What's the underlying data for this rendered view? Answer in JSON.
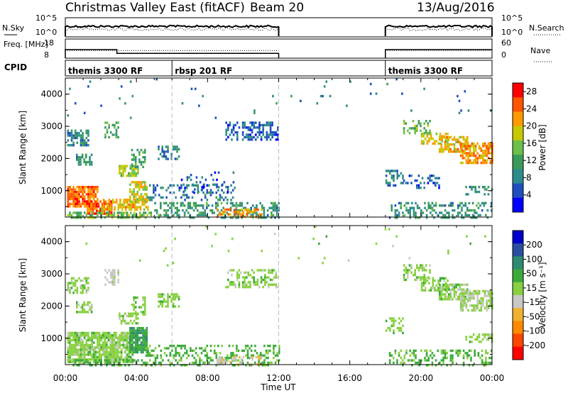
{
  "header": {
    "title": "Christmas Valley East (fitACF)",
    "beam": "Beam 20",
    "date": "13/Aug/2016"
  },
  "colors": {
    "power": [
      "#0000ff",
      "#1f4fbf",
      "#2e8b8b",
      "#3a9a5a",
      "#6ac04a",
      "#c8c800",
      "#ff9900",
      "#ff5500",
      "#ff0000"
    ],
    "velocity": [
      "#0000cc",
      "#2a4fa0",
      "#2e8b6f",
      "#3aaa3a",
      "#88d040",
      "#c8c8c4",
      "#f0b030",
      "#ff8800",
      "#ff4400",
      "#ff0000"
    ]
  },
  "chart_data": [
    {
      "type": "line",
      "panel": "nsky_nsearch",
      "left_label": "N.Sky",
      "right_label": "N.Search",
      "left_ticks": [
        "10^5",
        "10^0"
      ],
      "right_ticks": [
        "10^5",
        "10^0"
      ],
      "series": [
        {
          "name": "N.Sky",
          "segments": [
            [
              0.0,
              12.0
            ],
            [
              18.0,
              24.0
            ]
          ],
          "level": 0.45
        },
        {
          "name": "N.Search",
          "segments": [
            [
              0.0,
              12.0
            ],
            [
              18.0,
              24.0
            ]
          ],
          "level": 0.6
        }
      ]
    },
    {
      "type": "line",
      "panel": "freq_nave",
      "left_label": "Freq. [MHz]",
      "right_label": "Nave",
      "left_ticks": [
        "18",
        "8"
      ],
      "right_ticks": [
        "60",
        "0"
      ],
      "series": [
        {
          "name": "Freq.",
          "x": [
            0.0,
            2.9,
            2.9,
            12.0
          ],
          "y": [
            12.5,
            12.5,
            10.5,
            10.5
          ]
        },
        {
          "name": "Nave",
          "segments": [
            [
              0.0,
              12.0
            ],
            [
              18.0,
              24.0
            ]
          ],
          "y": 24
        }
      ]
    },
    {
      "type": "table",
      "panel": "cpid",
      "label": "CPID",
      "entries": [
        {
          "start": 0.0,
          "text": "themis 3300 RF"
        },
        {
          "start": 6.0,
          "text": "rbsp 201 RF"
        },
        {
          "start": 18.0,
          "text": "themis 3300 RF"
        }
      ]
    },
    {
      "type": "heatmap",
      "panel": "power",
      "ylabel": "Slant Range [km]",
      "xlim": [
        0,
        24
      ],
      "ylim": [
        180,
        4500
      ],
      "yticks": [
        1000,
        2000,
        3000,
        4000
      ],
      "colorbar_label": "Power [dB]",
      "colorbar_ticks": [
        4,
        8,
        12,
        16,
        20,
        24,
        28
      ],
      "colorbar_range": [
        0,
        30
      ],
      "dashed_lines_ut": [
        6.0,
        12.0
      ],
      "regions": [
        {
          "t0": 0.1,
          "t1": 1.3,
          "r0": 2400,
          "r1": 2900,
          "v": 9,
          "density": 0.55
        },
        {
          "t0": 0.6,
          "t1": 1.5,
          "r0": 1850,
          "r1": 2150,
          "v": 10,
          "density": 0.5
        },
        {
          "t0": 2.2,
          "t1": 3.0,
          "r0": 2700,
          "r1": 3150,
          "v": 12,
          "density": 0.55
        },
        {
          "t0": 3.0,
          "t1": 4.1,
          "r0": 1500,
          "r1": 1800,
          "v": 16,
          "density": 0.65
        },
        {
          "t0": 3.7,
          "t1": 4.5,
          "r0": 1750,
          "r1": 2300,
          "v": 12,
          "density": 0.4
        },
        {
          "t0": 5.2,
          "t1": 6.4,
          "r0": 2000,
          "r1": 2400,
          "v": 8,
          "density": 0.45
        },
        {
          "t0": 0.1,
          "t1": 1.8,
          "r0": 550,
          "r1": 1150,
          "v": 24,
          "density": 0.85
        },
        {
          "t0": 1.2,
          "t1": 2.6,
          "r0": 300,
          "r1": 700,
          "v": 26,
          "density": 0.8
        },
        {
          "t0": 2.0,
          "t1": 4.6,
          "r0": 400,
          "r1": 750,
          "v": 20,
          "density": 0.7
        },
        {
          "t0": 3.6,
          "t1": 4.6,
          "r0": 700,
          "r1": 1300,
          "v": 18,
          "density": 0.7
        },
        {
          "t0": 0.1,
          "t1": 4.8,
          "r0": 180,
          "r1": 350,
          "v": 14,
          "density": 0.6
        },
        {
          "t0": 4.5,
          "t1": 9.5,
          "r0": 700,
          "r1": 1200,
          "v": 7,
          "density": 0.25
        },
        {
          "t0": 5.0,
          "t1": 12.0,
          "r0": 180,
          "r1": 650,
          "v": 10,
          "density": 0.45
        },
        {
          "t0": 8.5,
          "t1": 11.0,
          "r0": 180,
          "r1": 450,
          "v": 22,
          "density": 0.45
        },
        {
          "t0": 6.5,
          "t1": 9.5,
          "r0": 1000,
          "r1": 1600,
          "v": 6,
          "density": 0.15
        },
        {
          "t0": 9.0,
          "t1": 12.0,
          "r0": 2600,
          "r1": 3150,
          "v": 6,
          "density": 0.45
        },
        {
          "t0": 18.0,
          "t1": 19.0,
          "r0": 1200,
          "r1": 1650,
          "v": 8,
          "density": 0.5
        },
        {
          "t0": 18.2,
          "t1": 24.0,
          "r0": 180,
          "r1": 650,
          "v": 10,
          "density": 0.35
        },
        {
          "t0": 19.0,
          "t1": 21.0,
          "r0": 1100,
          "r1": 1500,
          "v": 6,
          "density": 0.3
        },
        {
          "t0": 19.0,
          "t1": 20.5,
          "r0": 2800,
          "r1": 3200,
          "v": 14,
          "density": 0.4
        },
        {
          "t0": 20.0,
          "t1": 21.5,
          "r0": 2500,
          "r1": 2800,
          "v": 18,
          "density": 0.55
        },
        {
          "t0": 21.0,
          "t1": 22.6,
          "r0": 2200,
          "r1": 2700,
          "v": 20,
          "density": 0.65
        },
        {
          "t0": 22.2,
          "t1": 24.0,
          "r0": 1900,
          "r1": 2500,
          "v": 22,
          "density": 0.7
        },
        {
          "t0": 22.5,
          "t1": 24.0,
          "r0": 900,
          "r1": 1150,
          "v": 10,
          "density": 0.35
        },
        {
          "t0": 0.1,
          "t1": 24.0,
          "r0": 3300,
          "r1": 4500,
          "v": 8,
          "density": 0.012
        }
      ]
    },
    {
      "type": "heatmap",
      "panel": "velocity",
      "ylabel": "Slant Range [km]",
      "xlabel": "Time UT",
      "xlim": [
        0,
        24
      ],
      "ylim": [
        180,
        4500
      ],
      "yticks": [
        1000,
        2000,
        3000,
        4000
      ],
      "xticks": [
        "00:00",
        "04:00",
        "08:00",
        "12:00",
        "16:00",
        "20:00",
        "00:00"
      ],
      "colorbar_label": "Velocity [m s⁻¹]",
      "colorbar_ticks": [
        200,
        100,
        50,
        15,
        -15,
        -50,
        -100,
        -200
      ],
      "dashed_lines_ut": [
        6.0,
        12.0
      ],
      "regions": [
        {
          "t0": 0.1,
          "t1": 1.3,
          "r0": 2400,
          "r1": 2900,
          "v": 0,
          "density": 0.55
        },
        {
          "t0": 0.6,
          "t1": 1.5,
          "r0": 1850,
          "r1": 2150,
          "v": 0,
          "density": 0.5
        },
        {
          "t0": 2.2,
          "t1": 3.0,
          "r0": 2700,
          "r1": 3150,
          "v": -30,
          "density": 0.55
        },
        {
          "t0": 3.0,
          "t1": 4.1,
          "r0": 1500,
          "r1": 1800,
          "v": 0,
          "density": 0.65
        },
        {
          "t0": 3.7,
          "t1": 4.5,
          "r0": 1750,
          "r1": 2300,
          "v": 0,
          "density": 0.4
        },
        {
          "t0": 5.2,
          "t1": 6.4,
          "r0": 2000,
          "r1": 2400,
          "v": 0,
          "density": 0.45
        },
        {
          "t0": 0.1,
          "t1": 3.8,
          "r0": 300,
          "r1": 1200,
          "v": 0,
          "density": 0.85
        },
        {
          "t0": 3.6,
          "t1": 4.6,
          "r0": 600,
          "r1": 1350,
          "v": 45,
          "density": 0.85
        },
        {
          "t0": 0.1,
          "t1": 4.8,
          "r0": 180,
          "r1": 350,
          "v": 30,
          "density": 0.45
        },
        {
          "t0": 4.5,
          "t1": 12.0,
          "r0": 180,
          "r1": 800,
          "v": 25,
          "density": 0.35
        },
        {
          "t0": 8.5,
          "t1": 11.0,
          "r0": 180,
          "r1": 450,
          "v": -40,
          "density": 0.4
        },
        {
          "t0": 9.0,
          "t1": 12.0,
          "r0": 2600,
          "r1": 3150,
          "v": 0,
          "density": 0.45
        },
        {
          "t0": 18.0,
          "t1": 19.0,
          "r0": 1200,
          "r1": 1650,
          "v": 0,
          "density": 0.45
        },
        {
          "t0": 18.2,
          "t1": 24.0,
          "r0": 180,
          "r1": 650,
          "v": 20,
          "density": 0.35
        },
        {
          "t0": 19.0,
          "t1": 20.5,
          "r0": 2800,
          "r1": 3300,
          "v": 0,
          "density": 0.5
        },
        {
          "t0": 20.0,
          "t1": 21.5,
          "r0": 2500,
          "r1": 2900,
          "v": 0,
          "density": 0.6
        },
        {
          "t0": 21.0,
          "t1": 22.6,
          "r0": 2200,
          "r1": 2700,
          "v": 0,
          "density": 0.7
        },
        {
          "t0": 22.2,
          "t1": 24.0,
          "r0": 1900,
          "r1": 2500,
          "v": -10,
          "density": 0.75
        },
        {
          "t0": 22.5,
          "t1": 24.0,
          "r0": 900,
          "r1": 1150,
          "v": 0,
          "density": 0.35
        },
        {
          "t0": 0.1,
          "t1": 24.0,
          "r0": 3300,
          "r1": 4500,
          "v": 0,
          "density": 0.012
        }
      ]
    }
  ]
}
